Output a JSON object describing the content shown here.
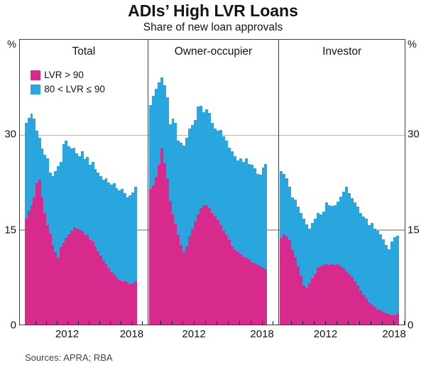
{
  "title": "ADIs’ High LVR Loans",
  "subtitle": "Share of new loan approvals",
  "sources": "Sources: APRA; RBA",
  "axis": {
    "unit": "%",
    "yticks": [
      30,
      15,
      0
    ],
    "ymax": 45,
    "xlabels": [
      "2012",
      "2018"
    ],
    "grid_values": [
      30,
      15
    ]
  },
  "legend": [
    {
      "label": "LVR > 90",
      "color": "#d82a8c"
    },
    {
      "label": "80 < LVR ≤ 90",
      "color": "#2aa6de"
    }
  ],
  "chart_data": {
    "type": "bar",
    "stacked": true,
    "frequency": "quarterly",
    "x_start": "2008Q1",
    "x_end": "2018Q2",
    "ylim": [
      0,
      45
    ],
    "ylabel": "%",
    "note": "values are stacked segment heights in per cent of new loan approvals",
    "panels": [
      {
        "label": "Total",
        "series": [
          {
            "name": "LVR > 90",
            "values": [
              16.7,
              18.0,
              18.9,
              20.1,
              22.3,
              22.9,
              20.1,
              17.6,
              15.7,
              14.4,
              12.6,
              11.4,
              10.5,
              12.2,
              12.9,
              13.7,
              14.2,
              14.8,
              15.4,
              15.2,
              15.0,
              14.8,
              14.2,
              14.1,
              13.3,
              13.1,
              12.4,
              11.6,
              10.9,
              10.1,
              9.5,
              8.9,
              8.3,
              7.9,
              7.4,
              7.1,
              6.9,
              6.8,
              6.6,
              6.4,
              6.5,
              6.8
            ]
          },
          {
            "name": "80 < LVR ≤ 90",
            "values": [
              15.2,
              14.7,
              14.4,
              12.4,
              8.3,
              6.6,
              7.7,
              9.2,
              10.6,
              9.6,
              10.9,
              12.8,
              14.5,
              13.5,
              15.6,
              15.4,
              14.0,
              13.0,
              12.6,
              11.8,
              11.6,
              12.6,
              11.9,
              12.4,
              12.0,
              12.6,
              12.2,
              12.4,
              12.6,
              12.8,
              13.6,
              13.6,
              13.8,
              14.4,
              14.2,
              14.1,
              14.5,
              14.0,
              13.5,
              14.0,
              14.4,
              15.0
            ]
          }
        ]
      },
      {
        "label": "Owner-occupier",
        "series": [
          {
            "name": "LVR > 90",
            "values": [
              21.4,
              22.0,
              23.3,
              25.3,
              27.8,
              25.5,
              23.1,
              19.5,
              17.4,
              15.9,
              14.1,
              12.6,
              11.4,
              12.4,
              13.9,
              15.2,
              16.3,
              17.4,
              18.4,
              18.9,
              18.8,
              18.4,
              17.6,
              17.1,
              16.5,
              15.7,
              14.8,
              14.1,
              13.3,
              12.4,
              11.8,
              11.4,
              11.1,
              10.7,
              10.5,
              10.3,
              9.9,
              9.7,
              9.4,
              9.2,
              9.0,
              8.8
            ]
          },
          {
            "name": "80 < LVR ≤ 90",
            "values": [
              13.3,
              14.1,
              14.0,
              13.0,
              11.3,
              12.3,
              12.8,
              12.2,
              15.1,
              16.0,
              15.0,
              16.1,
              16.9,
              17.1,
              17.1,
              16.3,
              16.0,
              17.0,
              16.2,
              14.7,
              15.2,
              15.0,
              14.3,
              13.9,
              14.1,
              15.1,
              14.9,
              15.0,
              14.7,
              15.0,
              14.8,
              14.5,
              15.2,
              15.0,
              15.8,
              15.1,
              15.3,
              15.0,
              14.4,
              14.5,
              15.8,
              16.6
            ]
          }
        ]
      },
      {
        "label": "Investor",
        "series": [
          {
            "name": "LVR > 90",
            "values": [
              13.7,
              14.2,
              13.9,
              13.3,
              11.8,
              10.7,
              9.2,
              7.7,
              6.2,
              5.8,
              6.5,
              7.3,
              8.0,
              9.0,
              9.2,
              9.4,
              9.5,
              9.4,
              9.5,
              9.4,
              9.5,
              9.2,
              9.0,
              8.4,
              8.0,
              7.5,
              6.9,
              6.2,
              5.4,
              4.7,
              4.1,
              3.5,
              3.2,
              2.8,
              2.4,
              2.2,
              2.0,
              1.8,
              1.7,
              1.5,
              1.5,
              1.7
            ]
          },
          {
            "name": "80 < LVR ≤ 90",
            "values": [
              10.5,
              9.6,
              9.2,
              8.5,
              8.3,
              9.0,
              9.4,
              9.9,
              10.5,
              10.0,
              8.7,
              8.8,
              8.7,
              8.6,
              8.2,
              8.4,
              9.8,
              9.5,
              9.3,
              9.5,
              9.9,
              11.0,
              12.0,
              13.4,
              12.8,
              12.5,
              12.4,
              12.4,
              12.2,
              12.4,
              12.6,
              12.2,
              12.9,
              12.4,
              12.4,
              12.0,
              11.5,
              10.8,
              10.2,
              11.6,
              12.3,
              12.3
            ]
          }
        ]
      }
    ]
  }
}
